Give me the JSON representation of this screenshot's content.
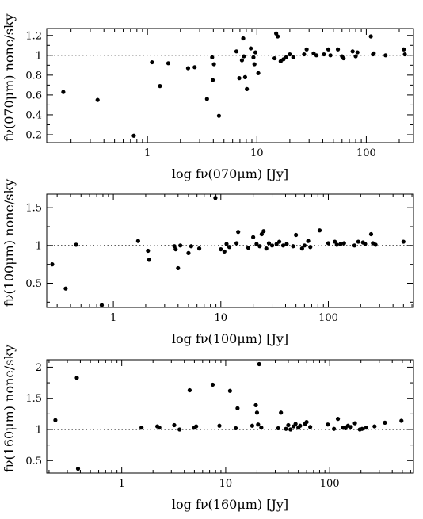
{
  "chart_data": [
    {
      "type": "scatter",
      "xscale": "log",
      "xlabel": "log fν(070μm) [Jy]",
      "ylabel": "fν(070μm) none/sky",
      "xlim": [
        0.12,
        270
      ],
      "ylim": [
        0.12,
        1.27
      ],
      "xticks": [
        1,
        10,
        100
      ],
      "xtick_labels": [
        "1",
        "10",
        "100"
      ],
      "yticks": [
        0.2,
        0.4,
        0.6,
        0.8,
        1,
        1.2
      ],
      "ytick_labels": [
        "0.2",
        "0.4",
        "0.6",
        "0.8",
        "1",
        "1.2"
      ],
      "reference_line": 1,
      "grid": false,
      "points": [
        [
          0.17,
          0.63
        ],
        [
          0.35,
          0.55
        ],
        [
          0.75,
          0.19
        ],
        [
          1.1,
          0.93
        ],
        [
          1.3,
          0.69
        ],
        [
          1.55,
          0.92
        ],
        [
          2.35,
          0.87
        ],
        [
          2.7,
          0.88
        ],
        [
          3.5,
          0.56
        ],
        [
          3.9,
          0.98
        ],
        [
          3.95,
          0.75
        ],
        [
          4.05,
          0.91
        ],
        [
          4.5,
          0.39
        ],
        [
          6.5,
          1.04
        ],
        [
          6.9,
          0.77
        ],
        [
          7.3,
          0.95
        ],
        [
          7.5,
          1.17
        ],
        [
          7.6,
          0.99
        ],
        [
          7.8,
          0.78
        ],
        [
          8.1,
          0.66
        ],
        [
          8.8,
          1.07
        ],
        [
          9.3,
          0.98
        ],
        [
          9.5,
          0.91
        ],
        [
          9.7,
          1.03
        ],
        [
          10.3,
          0.82
        ],
        [
          14.5,
          0.97
        ],
        [
          15.0,
          1.22
        ],
        [
          15.5,
          1.19
        ],
        [
          16.5,
          0.94
        ],
        [
          17.5,
          0.96
        ],
        [
          18.5,
          0.98
        ],
        [
          20.0,
          1.01
        ],
        [
          21.5,
          0.98
        ],
        [
          27.0,
          1.01
        ],
        [
          28.5,
          1.06
        ],
        [
          33.0,
          1.02
        ],
        [
          35.0,
          1.0
        ],
        [
          41.0,
          1.01
        ],
        [
          45.0,
          1.06
        ],
        [
          47.0,
          1.0
        ],
        [
          55.0,
          1.06
        ],
        [
          60.0,
          0.99
        ],
        [
          62.0,
          0.97
        ],
        [
          75.0,
          1.04
        ],
        [
          80.0,
          0.99
        ],
        [
          83.0,
          1.03
        ],
        [
          110.0,
          1.19
        ],
        [
          115.0,
          1.01
        ],
        [
          117.0,
          1.02
        ],
        [
          150.0,
          1.0
        ],
        [
          220.0,
          1.06
        ],
        [
          225.0,
          1.01
        ]
      ]
    },
    {
      "type": "scatter",
      "xscale": "log",
      "xlabel": "log fν(100μm) [Jy]",
      "ylabel": "fν(100μm) none/sky",
      "xlim": [
        0.24,
        620
      ],
      "ylim": [
        0.18,
        1.68
      ],
      "xticks": [
        1,
        10,
        100
      ],
      "xtick_labels": [
        "1",
        "10",
        "100"
      ],
      "yticks": [
        0.5,
        1,
        1.5
      ],
      "ytick_labels": [
        "0.5",
        "1",
        "1.5"
      ],
      "reference_line": 1,
      "grid": false,
      "points": [
        [
          0.27,
          0.75
        ],
        [
          0.36,
          0.43
        ],
        [
          0.45,
          1.01
        ],
        [
          0.78,
          0.21
        ],
        [
          1.7,
          1.06
        ],
        [
          2.1,
          0.93
        ],
        [
          2.15,
          0.81
        ],
        [
          3.7,
          0.99
        ],
        [
          3.8,
          0.95
        ],
        [
          4.0,
          0.7
        ],
        [
          4.2,
          1.0
        ],
        [
          5.0,
          0.9
        ],
        [
          5.3,
          0.99
        ],
        [
          6.3,
          0.96
        ],
        [
          8.9,
          1.63
        ],
        [
          10.0,
          0.95
        ],
        [
          10.8,
          0.92
        ],
        [
          11.3,
          1.02
        ],
        [
          12.0,
          0.98
        ],
        [
          14.0,
          1.03
        ],
        [
          14.5,
          1.18
        ],
        [
          18.0,
          0.97
        ],
        [
          20.0,
          1.11
        ],
        [
          21.5,
          1.02
        ],
        [
          23.0,
          0.99
        ],
        [
          24.0,
          1.15
        ],
        [
          25.0,
          1.19
        ],
        [
          26.5,
          0.96
        ],
        [
          28.0,
          1.03
        ],
        [
          30.0,
          1.0
        ],
        [
          33.0,
          1.02
        ],
        [
          35.0,
          1.05
        ],
        [
          38.0,
          1.0
        ],
        [
          41.0,
          1.02
        ],
        [
          47.0,
          0.99
        ],
        [
          50.0,
          1.14
        ],
        [
          57.0,
          0.96
        ],
        [
          60.0,
          1.0
        ],
        [
          65.0,
          1.06
        ],
        [
          68.0,
          0.98
        ],
        [
          83.0,
          1.2
        ],
        [
          100.0,
          1.03
        ],
        [
          115.0,
          1.05
        ],
        [
          120.0,
          1.01
        ],
        [
          130.0,
          1.02
        ],
        [
          140.0,
          1.03
        ],
        [
          175.0,
          1.0
        ],
        [
          190.0,
          1.05
        ],
        [
          210.0,
          1.04
        ],
        [
          220.0,
          1.02
        ],
        [
          250.0,
          1.15
        ],
        [
          260.0,
          1.03
        ],
        [
          275.0,
          1.01
        ],
        [
          500.0,
          1.05
        ]
      ]
    },
    {
      "type": "scatter",
      "xscale": "log",
      "xlabel": "log fν(160μm) [Jy]",
      "ylabel": "fν(160μm) none/sky",
      "xlim": [
        0.19,
        640
      ],
      "ylim": [
        0.3,
        2.12
      ],
      "xticks": [
        1,
        10,
        100
      ],
      "xtick_labels": [
        "1",
        "10",
        "100"
      ],
      "yticks": [
        0.5,
        1,
        1.5,
        2
      ],
      "ytick_labels": [
        "0.5",
        "1",
        "1.5",
        "2"
      ],
      "reference_line": 1,
      "grid": false,
      "points": [
        [
          0.23,
          1.15
        ],
        [
          0.37,
          1.83
        ],
        [
          0.38,
          0.37
        ],
        [
          1.55,
          1.03
        ],
        [
          2.2,
          1.05
        ],
        [
          2.3,
          1.03
        ],
        [
          3.2,
          1.07
        ],
        [
          3.6,
          1.0
        ],
        [
          4.5,
          1.63
        ],
        [
          5.0,
          1.03
        ],
        [
          5.2,
          1.05
        ],
        [
          7.5,
          1.72
        ],
        [
          8.7,
          1.06
        ],
        [
          11.0,
          1.62
        ],
        [
          12.5,
          1.02
        ],
        [
          13.0,
          1.34
        ],
        [
          18.0,
          1.06
        ],
        [
          19.5,
          1.39
        ],
        [
          20.0,
          1.27
        ],
        [
          20.5,
          1.08
        ],
        [
          21.0,
          2.05
        ],
        [
          22.0,
          1.03
        ],
        [
          32.0,
          1.02
        ],
        [
          34.0,
          1.27
        ],
        [
          38.0,
          1.01
        ],
        [
          40.0,
          1.07
        ],
        [
          42.0,
          1.0
        ],
        [
          45.0,
          1.05
        ],
        [
          47.0,
          1.09
        ],
        [
          50.0,
          1.03
        ],
        [
          52.0,
          1.06
        ],
        [
          58.0,
          1.09
        ],
        [
          60.0,
          1.12
        ],
        [
          65.0,
          1.04
        ],
        [
          96.0,
          1.08
        ],
        [
          110.0,
          1.01
        ],
        [
          120.0,
          1.17
        ],
        [
          135.0,
          1.03
        ],
        [
          142.0,
          1.02
        ],
        [
          150.0,
          1.06
        ],
        [
          160.0,
          1.04
        ],
        [
          175.0,
          1.1
        ],
        [
          195.0,
          1.0
        ],
        [
          205.0,
          1.01
        ],
        [
          225.0,
          1.03
        ],
        [
          270.0,
          1.05
        ],
        [
          340.0,
          1.11
        ],
        [
          490.0,
          1.14
        ]
      ]
    }
  ]
}
